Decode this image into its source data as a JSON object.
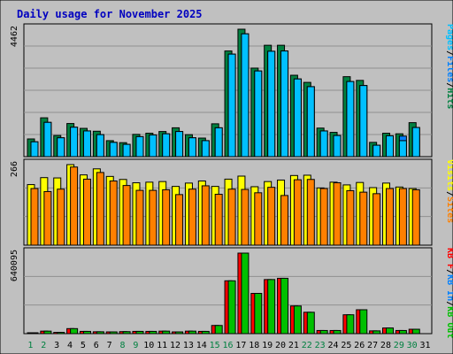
{
  "title": "Daily usage for November 2025",
  "colors": {
    "background": "#c0c0c0",
    "grid": "#909090",
    "title": "#0000c0",
    "pages": "#00c0ff",
    "files": "#0080ff",
    "hits": "#008040",
    "visits": "#ffff00",
    "sites": "#ff8000",
    "kb_in": "#0080ff",
    "kb_out": "#00c000",
    "kb_f": "#ff0000",
    "weekend_day": "#008040",
    "weekday": "#000000"
  },
  "chart_data": [
    {
      "type": "bar",
      "panel": "hits-files-pages",
      "categories": [
        "1",
        "2",
        "3",
        "4",
        "5",
        "6",
        "7",
        "8",
        "9",
        "10",
        "11",
        "12",
        "13",
        "14",
        "15",
        "16",
        "17",
        "18",
        "19",
        "20",
        "21",
        "22",
        "23",
        "24",
        "25",
        "26",
        "27",
        "28",
        "29",
        "30",
        "31"
      ],
      "ymax_label": "4462",
      "ylim": [
        0,
        4462
      ],
      "legend": [
        "Pages",
        "Files",
        "Hits"
      ],
      "series": [
        {
          "name": "Hits",
          "values": [
            620,
            1360,
            740,
            1160,
            990,
            890,
            560,
            490,
            780,
            820,
            880,
            1010,
            770,
            650,
            1150,
            3700,
            4462,
            3100,
            3900,
            3900,
            2850,
            2600,
            1000,
            850,
            2800,
            2670,
            500,
            820,
            800,
            1190,
            0
          ]
        },
        {
          "name": "Files",
          "values": [
            520,
            1200,
            660,
            1030,
            900,
            770,
            500,
            430,
            700,
            760,
            800,
            880,
            660,
            560,
            1010,
            3590,
            4300,
            3000,
            3690,
            3700,
            2720,
            2450,
            900,
            740,
            2630,
            2490,
            400,
            730,
            720,
            1020,
            0
          ]
        },
        {
          "name": "Pages",
          "values": [
            520,
            1200,
            660,
            1030,
            900,
            770,
            500,
            430,
            700,
            760,
            800,
            880,
            660,
            560,
            1010,
            3590,
            4300,
            3000,
            3690,
            3700,
            2720,
            2450,
            900,
            740,
            2630,
            2490,
            400,
            730,
            560,
            1020,
            0
          ]
        }
      ]
    },
    {
      "type": "bar",
      "panel": "visits-sites",
      "categories": [
        "1",
        "2",
        "3",
        "4",
        "5",
        "6",
        "7",
        "8",
        "9",
        "10",
        "11",
        "12",
        "13",
        "14",
        "15",
        "16",
        "17",
        "18",
        "19",
        "20",
        "21",
        "22",
        "23",
        "24",
        "25",
        "26",
        "27",
        "28",
        "29",
        "30",
        "31"
      ],
      "ymax_label": "266",
      "ylim": [
        0,
        266
      ],
      "legend": [
        "Visits",
        "Sites"
      ],
      "series": [
        {
          "name": "Visits",
          "values": [
            200,
            223,
            222,
            266,
            232,
            252,
            227,
            217,
            206,
            208,
            210,
            194,
            205,
            212,
            194,
            218,
            228,
            193,
            210,
            215,
            230,
            231,
            189,
            208,
            199,
            207,
            190,
            205,
            192,
            187,
            0
          ]
        },
        {
          "name": "Sites",
          "values": [
            187,
            177,
            185,
            258,
            218,
            240,
            212,
            197,
            181,
            181,
            183,
            167,
            185,
            196,
            168,
            185,
            184,
            173,
            191,
            164,
            216,
            217,
            187,
            206,
            180,
            175,
            170,
            187,
            187,
            183,
            0
          ]
        }
      ]
    },
    {
      "type": "bar",
      "panel": "kbytes",
      "categories": [
        "1",
        "2",
        "3",
        "4",
        "5",
        "6",
        "7",
        "8",
        "9",
        "10",
        "11",
        "12",
        "13",
        "14",
        "15",
        "16",
        "17",
        "18",
        "19",
        "20",
        "21",
        "22",
        "23",
        "24",
        "25",
        "26",
        "27",
        "28",
        "29",
        "30",
        "31"
      ],
      "ymax_label": "640095",
      "ylim": [
        0,
        640095
      ],
      "legend": [
        "KB F",
        "KB In",
        "KB Out"
      ],
      "series": [
        {
          "name": "KB F",
          "values": [
            3000,
            20000,
            10000,
            40000,
            18000,
            15000,
            14000,
            16000,
            18000,
            18000,
            20000,
            14000,
            20000,
            18000,
            65000,
            420000,
            640095,
            320000,
            430000,
            440000,
            220000,
            170000,
            25000,
            25000,
            150000,
            190000,
            22000,
            45000,
            25000,
            35000,
            0
          ]
        },
        {
          "name": "KB In",
          "values": [
            0,
            0,
            0,
            0,
            0,
            0,
            0,
            0,
            0,
            0,
            0,
            0,
            0,
            0,
            0,
            0,
            0,
            0,
            0,
            0,
            0,
            0,
            0,
            0,
            0,
            0,
            0,
            0,
            0,
            0,
            0
          ]
        },
        {
          "name": "KB Out",
          "values": [
            3000,
            20000,
            10000,
            40000,
            18000,
            15000,
            14000,
            16000,
            18000,
            18000,
            20000,
            14000,
            20000,
            18000,
            65000,
            420000,
            640095,
            320000,
            430000,
            440000,
            220000,
            170000,
            25000,
            25000,
            150000,
            190000,
            22000,
            45000,
            25000,
            35000,
            0
          ]
        }
      ]
    }
  ],
  "weekend_days": [
    1,
    2,
    8,
    9,
    15,
    16,
    22,
    23,
    29,
    30
  ]
}
